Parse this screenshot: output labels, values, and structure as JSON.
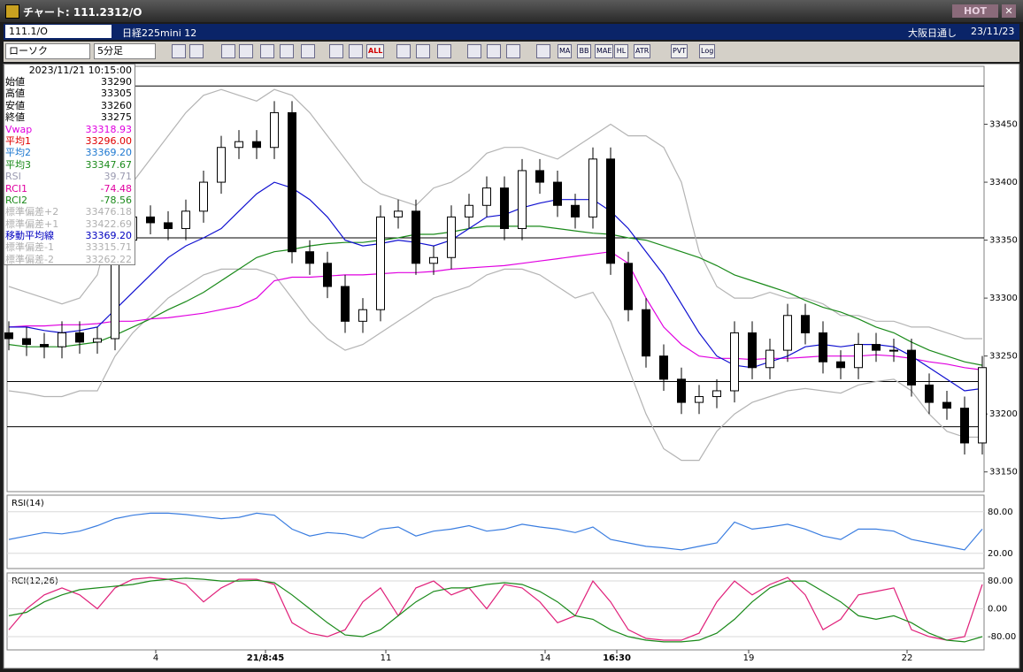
{
  "window": {
    "title": "チャート: 111.2312/O",
    "hot": "HOT",
    "symbol": "111.1/O",
    "name": "日経225mini 12",
    "market": "大阪日通し",
    "date": "23/11/23"
  },
  "toolbar": {
    "chart_type": "ローソク",
    "period": "5分足",
    "buttons": [
      "ALL",
      "MA",
      "BB",
      "MAE",
      "HL",
      "ATR",
      "PVT",
      "Log"
    ]
  },
  "info_panel": {
    "datetime": "2023/11/21  10:15:00",
    "rows": [
      {
        "label": "始値",
        "value": "33290",
        "color": "#000000"
      },
      {
        "label": "高値",
        "value": "33305",
        "color": "#000000"
      },
      {
        "label": "安値",
        "value": "33260",
        "color": "#000000"
      },
      {
        "label": "終値",
        "value": "33275",
        "color": "#000000"
      },
      {
        "label": "Vwap",
        "value": "33318.93",
        "color": "#e000e0"
      },
      {
        "label": "平均1",
        "value": "33296.00",
        "color": "#e00000"
      },
      {
        "label": "平均2",
        "value": "33369.20",
        "color": "#1e78d0"
      },
      {
        "label": "平均3",
        "value": "33347.67",
        "color": "#1a8a1a"
      },
      {
        "label": "RSI",
        "value": "39.71",
        "color": "#9a9ab0"
      },
      {
        "label": "RCI1",
        "value": "-74.48",
        "color": "#e000a0"
      },
      {
        "label": "RCI2",
        "value": "-78.56",
        "color": "#1a8a1a"
      },
      {
        "label": "標準偏差+2",
        "value": "33476.18",
        "color": "#b0b0b0"
      },
      {
        "label": "標準偏差+1",
        "value": "33422.69",
        "color": "#b0b0b0"
      },
      {
        "label": "移動平均線",
        "value": "33369.20",
        "color": "#0000c0"
      },
      {
        "label": "標準偏差-1",
        "value": "33315.71",
        "color": "#b0b0b0"
      },
      {
        "label": "標準偏差-2",
        "value": "33262.22",
        "color": "#b0b0b0"
      }
    ]
  },
  "chart_data": [
    {
      "type": "candlestick",
      "x": [
        0,
        1,
        2,
        3,
        4,
        5,
        6,
        7,
        8,
        9,
        10,
        11,
        12,
        13,
        14,
        15,
        16,
        17,
        18,
        19,
        20,
        21,
        22,
        23,
        24,
        25,
        26,
        27,
        28,
        29,
        30,
        31,
        32,
        33,
        34,
        35,
        36,
        37,
        38,
        39,
        40,
        41,
        42,
        43,
        44,
        45,
        46,
        47,
        48,
        49,
        50,
        51,
        52,
        53,
        54,
        55
      ],
      "open": [
        33270,
        33265,
        33260,
        33258,
        33270,
        33262,
        33265,
        33350,
        33370,
        33365,
        33360,
        33375,
        33400,
        33430,
        33435,
        33430,
        33460,
        33340,
        33330,
        33310,
        33280,
        33290,
        33370,
        33375,
        33330,
        33335,
        33370,
        33380,
        33395,
        33360,
        33410,
        33400,
        33380,
        33370,
        33420,
        33330,
        33290,
        33250,
        33230,
        33210,
        33215,
        33220,
        33270,
        33240,
        33255,
        33285,
        33270,
        33245,
        33240,
        33260,
        33255,
        33255,
        33225,
        33210,
        33205,
        33175
      ],
      "high": [
        33280,
        33275,
        33270,
        33280,
        33280,
        33275,
        33360,
        33380,
        33380,
        33375,
        33385,
        33410,
        33440,
        33445,
        33445,
        33470,
        33470,
        33350,
        33340,
        33320,
        33300,
        33380,
        33385,
        33385,
        33345,
        33380,
        33390,
        33405,
        33405,
        33420,
        33420,
        33410,
        33390,
        33430,
        33430,
        33340,
        33300,
        33260,
        33240,
        33225,
        33230,
        33280,
        33280,
        33265,
        33295,
        33295,
        33280,
        33255,
        33270,
        33270,
        33265,
        33265,
        33235,
        33220,
        33215,
        33250
      ],
      "low": [
        33255,
        33250,
        33248,
        33248,
        33252,
        33252,
        33255,
        33340,
        33355,
        33350,
        33350,
        33365,
        33390,
        33420,
        33420,
        33420,
        33330,
        33320,
        33300,
        33270,
        33270,
        33280,
        33360,
        33320,
        33320,
        33325,
        33360,
        33370,
        33350,
        33350,
        33390,
        33370,
        33360,
        33360,
        33320,
        33280,
        33240,
        33220,
        33200,
        33200,
        33205,
        33210,
        33230,
        33230,
        33245,
        33260,
        33235,
        33230,
        33230,
        33245,
        33245,
        33215,
        33200,
        33195,
        33165,
        33165
      ],
      "close": [
        33265,
        33260,
        33258,
        33270,
        33262,
        33265,
        33350,
        33370,
        33365,
        33360,
        33375,
        33400,
        33430,
        33435,
        33430,
        33460,
        33340,
        33330,
        33310,
        33280,
        33290,
        33370,
        33375,
        33330,
        33335,
        33370,
        33380,
        33395,
        33360,
        33410,
        33400,
        33380,
        33370,
        33420,
        33330,
        33290,
        33250,
        33230,
        33210,
        33215,
        33220,
        33270,
        33240,
        33255,
        33285,
        33270,
        33245,
        33240,
        33260,
        33255,
        33255,
        33225,
        33210,
        33205,
        33175,
        33240
      ],
      "series": [
        {
          "color": "#b4b4b4",
          "values": [
            33310,
            33305,
            33300,
            33295,
            33300,
            33320,
            33380,
            33400,
            33420,
            33440,
            33460,
            33475,
            33480,
            33475,
            33470,
            33480,
            33475,
            33460,
            33440,
            33420,
            33400,
            33390,
            33385,
            33380,
            33395,
            33400,
            33410,
            33425,
            33430,
            33430,
            33425,
            33420,
            33430,
            33440,
            33450,
            33440,
            33440,
            33430,
            33400,
            33340,
            33310,
            33300,
            33300,
            33305,
            33300,
            33300,
            33295,
            33285,
            33285,
            33280,
            33280,
            33275,
            33275,
            33270,
            33265,
            33265
          ]
        },
        {
          "color": "#b4b4b4",
          "values": [
            33220,
            33218,
            33215,
            33215,
            33220,
            33220,
            33250,
            33270,
            33285,
            33300,
            33310,
            33320,
            33325,
            33325,
            33325,
            33320,
            33300,
            33280,
            33265,
            33255,
            33260,
            33270,
            33280,
            33290,
            33300,
            33305,
            33310,
            33320,
            33325,
            33325,
            33320,
            33310,
            33300,
            33305,
            33280,
            33240,
            33200,
            33170,
            33160,
            33160,
            33185,
            33200,
            33210,
            33215,
            33220,
            33222,
            33220,
            33218,
            33225,
            33228,
            33230,
            33220,
            33200,
            33185,
            33180,
            33180
          ]
        },
        {
          "color": "#1a8a1a",
          "values": [
            33260,
            33258,
            33258,
            33258,
            33260,
            33262,
            33268,
            33275,
            33282,
            33290,
            33297,
            33305,
            33315,
            33325,
            33335,
            33340,
            33342,
            33345,
            33347,
            33348,
            33348,
            33350,
            33352,
            33355,
            33355,
            33357,
            33360,
            33362,
            33362,
            33362,
            33362,
            33360,
            33358,
            33356,
            33355,
            33352,
            33350,
            33345,
            33340,
            33335,
            33328,
            33320,
            33315,
            33310,
            33305,
            33298,
            33292,
            33288,
            33282,
            33275,
            33270,
            33262,
            33255,
            33250,
            33245,
            33242
          ]
        },
        {
          "color": "#e000e0",
          "values": [
            33275,
            33276,
            33276,
            33277,
            33277,
            33278,
            33280,
            33280,
            33282,
            33283,
            33285,
            33287,
            33290,
            33293,
            33300,
            33315,
            33318,
            33318,
            33319,
            33320,
            33320,
            33321,
            33322,
            33322,
            33323,
            33325,
            33326,
            33327,
            33328,
            33330,
            33332,
            33334,
            33336,
            33338,
            33340,
            33330,
            33300,
            33275,
            33260,
            33250,
            33248,
            33248,
            33247,
            33248,
            33248,
            33249,
            33250,
            33250,
            33250,
            33251,
            33250,
            33248,
            33245,
            33243,
            33240,
            33238
          ]
        },
        {
          "color": "#1010d0",
          "values": [
            33275,
            33275,
            33272,
            33270,
            33272,
            33275,
            33290,
            33305,
            33320,
            33335,
            33345,
            33352,
            33360,
            33375,
            33390,
            33400,
            33395,
            33385,
            33370,
            33350,
            33345,
            33347,
            33350,
            33348,
            33345,
            33350,
            33360,
            33370,
            33372,
            33378,
            33382,
            33385,
            33385,
            33385,
            33375,
            33360,
            33340,
            33320,
            33295,
            33270,
            33250,
            33242,
            33240,
            33245,
            33250,
            33258,
            33260,
            33258,
            33260,
            33260,
            33258,
            33250,
            33240,
            33230,
            33220,
            33222
          ]
        }
      ],
      "hlines": [
        33483,
        33352,
        33228,
        33189
      ],
      "ylim": [
        33133,
        33500
      ],
      "yticks": [
        33150,
        33200,
        33250,
        33300,
        33350,
        33400,
        33450
      ],
      "xlim": [
        -0.1,
        55.1
      ],
      "xticks": [
        {
          "value": 8.3,
          "label": "4"
        },
        {
          "value": 14.5,
          "label": "21/8:45"
        },
        {
          "value": 21.3,
          "label": "11"
        },
        {
          "value": 30.3,
          "label": "14"
        },
        {
          "value": 34.35,
          "label": "16:30"
        },
        {
          "value": 41.8,
          "label": "19"
        },
        {
          "value": 50.75,
          "label": "22"
        }
      ]
    },
    {
      "type": "line",
      "title": "RSI(14)",
      "x": [
        0,
        1,
        2,
        3,
        4,
        5,
        6,
        7,
        8,
        9,
        10,
        11,
        12,
        13,
        14,
        15,
        16,
        17,
        18,
        19,
        20,
        21,
        22,
        23,
        24,
        25,
        26,
        27,
        28,
        29,
        30,
        31,
        32,
        33,
        34,
        35,
        36,
        37,
        38,
        39,
        40,
        41,
        42,
        43,
        44,
        45,
        46,
        47,
        48,
        49,
        50,
        51,
        52,
        53,
        54,
        55
      ],
      "series": [
        {
          "color": "#3a7de0",
          "values": [
            40,
            45,
            50,
            48,
            52,
            60,
            70,
            75,
            78,
            78,
            76,
            73,
            70,
            72,
            78,
            75,
            55,
            45,
            50,
            48,
            42,
            55,
            58,
            45,
            52,
            55,
            60,
            52,
            55,
            62,
            58,
            55,
            50,
            58,
            40,
            35,
            30,
            28,
            25,
            30,
            35,
            65,
            55,
            58,
            62,
            55,
            45,
            40,
            55,
            55,
            52,
            40,
            35,
            30,
            25,
            55
          ]
        }
      ],
      "ylim": [
        -2,
        104
      ],
      "yticks": [
        {
          "value": 80,
          "label": "80.00"
        },
        {
          "value": 20,
          "label": "20.00"
        }
      ],
      "xlim": [
        -0.1,
        55.1
      ]
    },
    {
      "type": "line",
      "title": "RCI(12,26)",
      "x": [
        0,
        1,
        2,
        3,
        4,
        5,
        6,
        7,
        8,
        9,
        10,
        11,
        12,
        13,
        14,
        15,
        16,
        17,
        18,
        19,
        20,
        21,
        22,
        23,
        24,
        25,
        26,
        27,
        28,
        29,
        30,
        31,
        32,
        33,
        34,
        35,
        36,
        37,
        38,
        39,
        40,
        41,
        42,
        43,
        44,
        45,
        46,
        47,
        48,
        49,
        50,
        51,
        52,
        53,
        54,
        55
      ],
      "series": [
        {
          "color": "#e0207a",
          "values": [
            -60,
            0,
            40,
            60,
            40,
            0,
            60,
            85,
            90,
            85,
            70,
            20,
            60,
            85,
            85,
            70,
            -40,
            -70,
            -80,
            -60,
            20,
            60,
            -20,
            60,
            80,
            40,
            60,
            0,
            70,
            60,
            20,
            -40,
            -20,
            80,
            20,
            -60,
            -85,
            -90,
            -90,
            -70,
            20,
            80,
            40,
            70,
            90,
            40,
            -60,
            -30,
            40,
            50,
            60,
            -60,
            -80,
            -90,
            -80,
            70
          ]
        },
        {
          "color": "#1a8a1a",
          "values": [
            -20,
            -10,
            20,
            40,
            55,
            60,
            65,
            70,
            80,
            85,
            88,
            85,
            80,
            80,
            82,
            75,
            40,
            0,
            -40,
            -75,
            -80,
            -60,
            -20,
            20,
            50,
            60,
            60,
            70,
            75,
            70,
            50,
            20,
            -20,
            -30,
            -60,
            -80,
            -90,
            -95,
            -95,
            -90,
            -70,
            -30,
            20,
            60,
            80,
            80,
            50,
            20,
            -20,
            -30,
            -20,
            -40,
            -70,
            -90,
            -95,
            -80
          ]
        }
      ],
      "ylim": [
        -118,
        103
      ],
      "yticks": [
        {
          "value": 80,
          "label": "80.00"
        },
        {
          "value": 0,
          "label": "0.00"
        },
        {
          "value": -80,
          "label": "-80.00"
        }
      ],
      "xlim": [
        -0.1,
        55.1
      ]
    }
  ]
}
